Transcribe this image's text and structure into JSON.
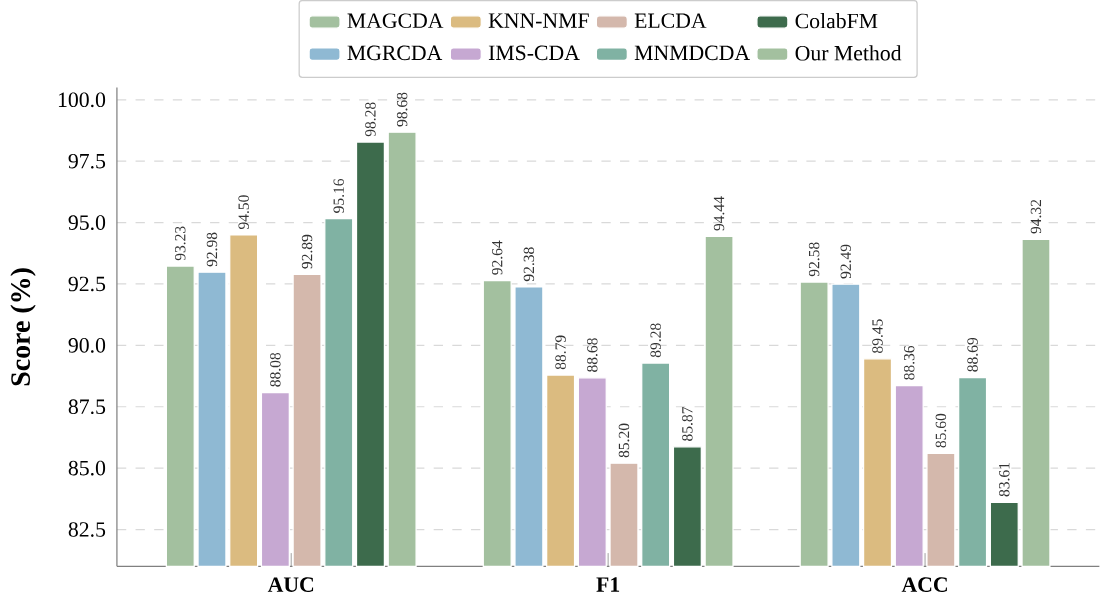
{
  "chart_data": {
    "type": "bar",
    "ylabel": "Score (%)",
    "categories": [
      "AUC",
      "F1",
      "ACC"
    ],
    "series": [
      {
        "name": "MAGCDA",
        "color": "#a3c09f",
        "values": [
          93.23,
          92.64,
          92.58
        ],
        "value_labels": [
          "93.23",
          "92.64",
          "92.58"
        ]
      },
      {
        "name": "MGRCDA",
        "color": "#8fb9d3",
        "values": [
          92.98,
          92.38,
          92.49
        ],
        "value_labels": [
          "92.98",
          "92.38",
          "92.49"
        ]
      },
      {
        "name": "KNN-NMF",
        "color": "#dbbb80",
        "values": [
          94.5,
          88.79,
          89.45
        ],
        "value_labels": [
          "94.50",
          "88.79",
          "89.45"
        ]
      },
      {
        "name": "IMS-CDA",
        "color": "#c6a8d2",
        "values": [
          88.08,
          88.68,
          88.36
        ],
        "value_labels": [
          "88.08",
          "88.68",
          "88.36"
        ]
      },
      {
        "name": "ELCDA",
        "color": "#d4b8ac",
        "values": [
          92.89,
          85.2,
          85.6
        ],
        "value_labels": [
          "92.89",
          "85.20",
          "85.60"
        ]
      },
      {
        "name": "MNMDCDA",
        "color": "#80b2a3",
        "values": [
          95.16,
          89.28,
          88.69
        ],
        "value_labels": [
          "95.16",
          "89.28",
          "88.69"
        ]
      },
      {
        "name": "ColabFM",
        "color": "#3d6b4c",
        "values": [
          98.28,
          85.87,
          83.61
        ],
        "value_labels": [
          "98.28",
          "85.87",
          "83.61"
        ]
      },
      {
        "name": "Our Method",
        "color": "#a3c09f",
        "values": [
          98.68,
          94.44,
          94.32
        ],
        "value_labels": [
          "98.68",
          "94.44",
          "94.32"
        ]
      }
    ],
    "ylim": [
      81,
      100.5
    ],
    "yticks": [
      82.5,
      {
        "value": 85,
        "label": "85.0"
      },
      87.5,
      {
        "value": 90,
        "label": "90.0"
      },
      92.5,
      {
        "value": 95,
        "label": "95.0"
      },
      97.5,
      {
        "value": 100,
        "label": "100.0"
      }
    ],
    "grid": "y",
    "legend": "top"
  }
}
